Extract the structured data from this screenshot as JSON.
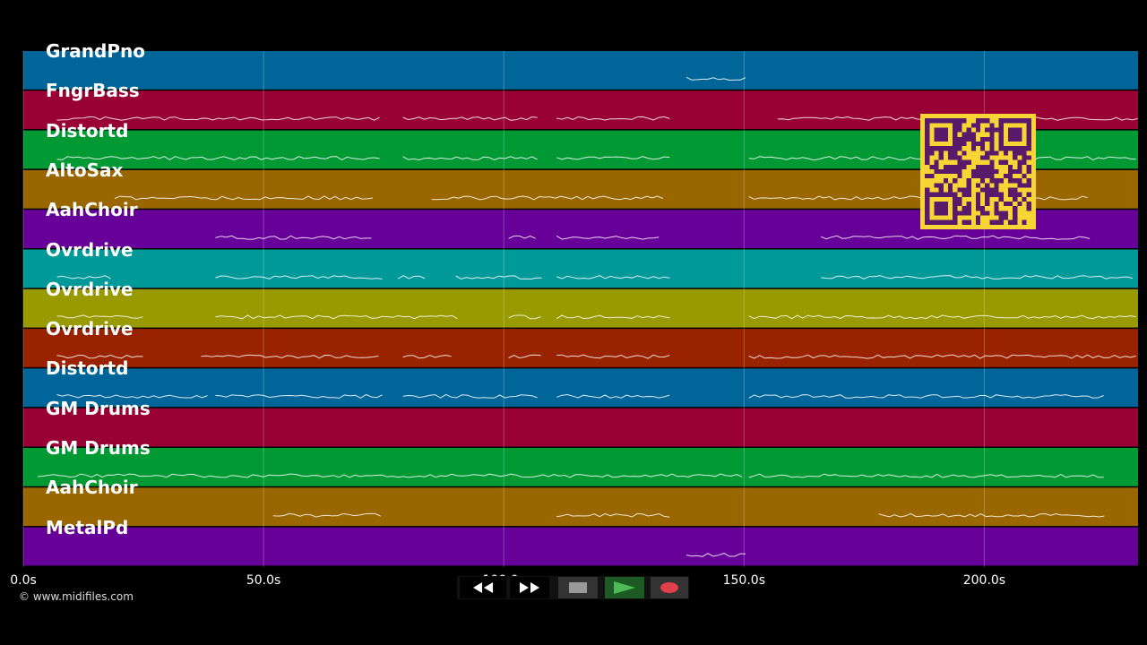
{
  "tracks": [
    {
      "name": "GrandPno",
      "color": "#006699"
    },
    {
      "name": "FngrBass",
      "color": "#990033"
    },
    {
      "name": "Distortd",
      "color": "#009933"
    },
    {
      "name": "AltoSax",
      "color": "#996600"
    },
    {
      "name": "AahChoir",
      "color": "#660099"
    },
    {
      "name": "Ovrdrive",
      "color": "#009999"
    },
    {
      "name": "Ovrdrive",
      "color": "#999900"
    },
    {
      "name": "Ovrdrive",
      "color": "#992200"
    },
    {
      "name": "Distortd",
      "color": "#006699"
    },
    {
      "name": "GM Drums",
      "color": "#990033"
    },
    {
      "name": "GM Drums",
      "color": "#009933"
    },
    {
      "name": "AahChoir",
      "color": "#996600"
    },
    {
      "name": "MetalPd",
      "color": "#660099"
    }
  ],
  "timeline": {
    "unit": "s",
    "range": [
      0,
      232
    ],
    "ticks": [
      {
        "value": 0,
        "label": "0.0s"
      },
      {
        "value": 50,
        "label": "50.0s"
      },
      {
        "value": 100,
        "label": "100.0s"
      },
      {
        "value": 150,
        "label": "150.0s"
      },
      {
        "value": 200,
        "label": "200.0s"
      }
    ]
  },
  "note_segments": [
    [
      [
        138,
        151
      ]
    ],
    [
      [
        7,
        75
      ],
      [
        79,
        108
      ],
      [
        111,
        135
      ],
      [
        157,
        232
      ]
    ],
    [
      [
        7,
        75
      ],
      [
        79,
        108
      ],
      [
        111,
        135
      ],
      [
        151,
        232
      ]
    ],
    [
      [
        19,
        73
      ],
      [
        85,
        134
      ],
      [
        151,
        222
      ]
    ],
    [
      [
        40,
        73
      ],
      [
        101,
        107
      ],
      [
        111,
        133
      ],
      [
        166,
        222
      ]
    ],
    [
      [
        7,
        19
      ],
      [
        40,
        75
      ],
      [
        78,
        84
      ],
      [
        90,
        108
      ],
      [
        111,
        135
      ],
      [
        166,
        232
      ]
    ],
    [
      [
        7,
        25
      ],
      [
        40,
        91
      ],
      [
        101,
        108
      ],
      [
        111,
        135
      ],
      [
        151,
        232
      ]
    ],
    [
      [
        7,
        25
      ],
      [
        37,
        75
      ],
      [
        79,
        90
      ],
      [
        101,
        108
      ],
      [
        111,
        135
      ],
      [
        151,
        232
      ]
    ],
    [
      [
        7,
        39
      ],
      [
        40,
        75
      ],
      [
        79,
        108
      ],
      [
        111,
        135
      ],
      [
        151,
        225
      ]
    ],
    [
      [
        1,
        2
      ]
    ],
    [
      [
        3,
        150
      ],
      [
        151,
        225
      ]
    ],
    [
      [
        52,
        75
      ],
      [
        111,
        135
      ],
      [
        178,
        225
      ]
    ],
    [
      [
        138,
        151
      ]
    ]
  ],
  "copyright": "© www.midifiles.com",
  "transport": {
    "rewind": "rewind-icon",
    "fast_forward": "fast-forward-icon",
    "stop": "stop-icon",
    "play": "play-icon",
    "record": "record-icon"
  },
  "qr_code": "qr-code"
}
